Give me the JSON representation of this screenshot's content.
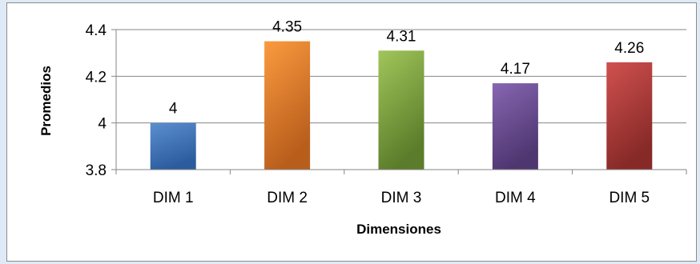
{
  "chart_data": {
    "type": "bar",
    "categories": [
      "DIM 1",
      "DIM 2",
      "DIM 3",
      "DIM 4",
      "DIM 5"
    ],
    "values": [
      4,
      4.35,
      4.31,
      4.17,
      4.26
    ],
    "data_labels": [
      "4",
      "4.35",
      "4.31",
      "4.17",
      "4.26"
    ],
    "title": "",
    "xlabel": "Dimensiones",
    "ylabel": "Promedios",
    "ylim": [
      3.8,
      4.4
    ],
    "yticks": [
      3.8,
      4,
      4.2,
      4.4
    ],
    "ytick_labels": [
      "3.8",
      "4",
      "4.2",
      "4.4"
    ],
    "grid": "horizontal",
    "legend": "none",
    "bar_colors": [
      [
        "#5b8fd0",
        "#2c5c9e"
      ],
      [
        "#fb9a3f",
        "#b85e1c"
      ],
      [
        "#a1c65a",
        "#5b7c2a"
      ],
      [
        "#8766b2",
        "#4e3670"
      ],
      [
        "#d0514f",
        "#862927"
      ]
    ]
  }
}
